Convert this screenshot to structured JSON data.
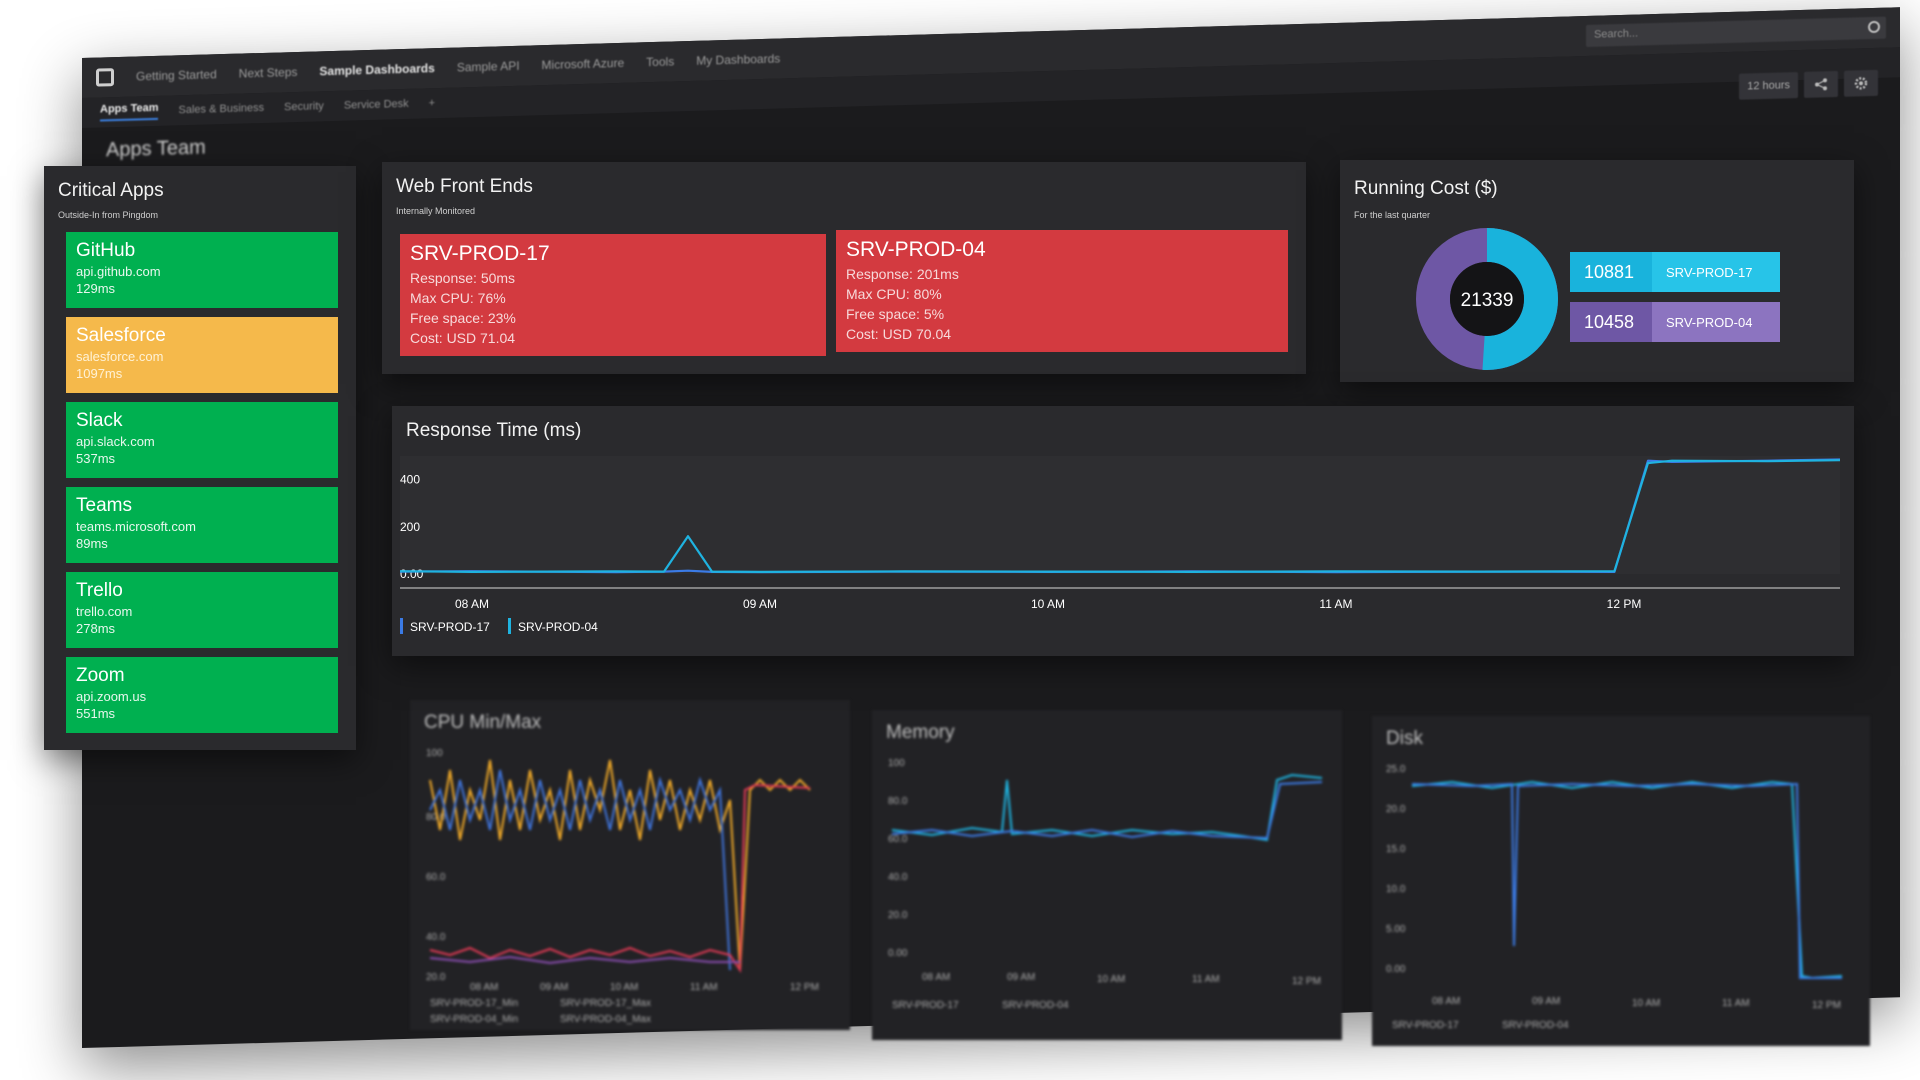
{
  "topnav": {
    "items": [
      "Getting Started",
      "Next Steps",
      "Sample Dashboards",
      "Sample API",
      "Microsoft Azure",
      "Tools",
      "My Dashboards"
    ],
    "active_index": 2,
    "search_placeholder": "Search..."
  },
  "subnav": {
    "items": [
      "Apps Team",
      "Sales & Business",
      "Security",
      "Service Desk",
      "+"
    ],
    "active_index": 0
  },
  "toolbar": {
    "timeframe": "12 hours"
  },
  "critical_apps": {
    "title": "Critical Apps",
    "subtitle": "Outside-In from Pingdom",
    "apps": [
      {
        "name": "GitHub",
        "url": "api.github.com",
        "ms": "129ms",
        "status": "ok"
      },
      {
        "name": "Salesforce",
        "url": "salesforce.com",
        "ms": "1097ms",
        "status": "warning"
      },
      {
        "name": "Slack",
        "url": "api.slack.com",
        "ms": "537ms",
        "status": "ok"
      },
      {
        "name": "Teams",
        "url": "teams.microsoft.com",
        "ms": "89ms",
        "status": "ok"
      },
      {
        "name": "Trello",
        "url": "trello.com",
        "ms": "278ms",
        "status": "ok"
      },
      {
        "name": "Zoom",
        "url": "api.zoom.us",
        "ms": "551ms",
        "status": "ok"
      }
    ],
    "colors": {
      "ok": "#00b050",
      "warning": "#f5b94b"
    }
  },
  "web_front_ends": {
    "title": "Web Front Ends",
    "subtitle": "Internally Monitored",
    "servers": [
      {
        "name": "SRV-PROD-17",
        "response": "Response: 50ms",
        "cpu": "Max CPU: 76%",
        "free": "Free space: 23%",
        "cost": "Cost: USD 71.04"
      },
      {
        "name": "SRV-PROD-04",
        "response": "Response: 201ms",
        "cpu": "Max CPU: 80%",
        "free": "Free space: 5%",
        "cost": "Cost: USD 70.04"
      }
    ],
    "alert_color": "#d33a40"
  },
  "running_cost": {
    "title": "Running Cost ($)",
    "subtitle": "For the last quarter",
    "total": "21339",
    "items": [
      {
        "value": "10881",
        "label": "SRV-PROD-17",
        "color": "#19b3dc",
        "label_color": "#27c4e8"
      },
      {
        "value": "10458",
        "label": "SRV-PROD-04",
        "color": "#6e57a5",
        "label_color": "#8c74c0"
      }
    ]
  },
  "response_time": {
    "title": "Response Time (ms)"
  },
  "chart_data": [
    {
      "type": "line",
      "title": "Response Time (ms)",
      "x": [
        "07:45",
        "08:00",
        "08:30",
        "08:40",
        "08:45",
        "08:50",
        "09:00",
        "09:30",
        "10:00",
        "10:30",
        "11:00",
        "11:30",
        "11:58",
        "12:05",
        "12:10",
        "12:30",
        "12:45"
      ],
      "xticks": [
        "08 AM",
        "09 AM",
        "10 AM",
        "11 AM",
        "12 PM"
      ],
      "yticks": [
        "0.00",
        "200",
        "400"
      ],
      "ylim": [
        0,
        500
      ],
      "series": [
        {
          "name": "SRV-PROD-17",
          "color": "#3b7be6",
          "values": [
            10,
            12,
            8,
            10,
            14,
            9,
            8,
            10,
            9,
            11,
            8,
            10,
            9,
            480,
            475,
            480,
            485
          ]
        },
        {
          "name": "SRV-PROD-04",
          "color": "#1fb3e0",
          "values": [
            12,
            9,
            11,
            10,
            160,
            10,
            9,
            11,
            10,
            9,
            11,
            10,
            12,
            470,
            480,
            478,
            482
          ]
        }
      ],
      "legend_position": "bottom-left"
    }
  ],
  "bottom_panels": {
    "cpu": {
      "title": "CPU Min/Max",
      "legend": [
        "SRV-PROD-17_Min",
        "SRV-PROD-17_Max",
        "SRV-PROD-04_Min",
        "SRV-PROD-04_Max"
      ],
      "yticks": [
        "100",
        "80.0",
        "60.0",
        "40.0",
        "20.0"
      ],
      "xticks": [
        "08 AM",
        "09 AM",
        "10 AM",
        "11 AM",
        "12 PM"
      ]
    },
    "memory": {
      "title": "Memory",
      "legend": [
        "SRV-PROD-17",
        "SRV-PROD-04"
      ],
      "yticks": [
        "100",
        "80.0",
        "60.0",
        "40.0",
        "20.0",
        "0.00"
      ],
      "xticks": [
        "08 AM",
        "09 AM",
        "10 AM",
        "11 AM",
        "12 PM"
      ]
    },
    "disk": {
      "title": "Disk",
      "legend": [
        "SRV-PROD-17",
        "SRV-PROD-04"
      ],
      "yticks": [
        "25.0",
        "20.0",
        "15.0",
        "10.0",
        "5.00",
        "0.00"
      ],
      "xticks": [
        "08 AM",
        "09 AM",
        "10 AM",
        "11 AM",
        "12 PM"
      ]
    }
  },
  "background_heading": "Apps Team"
}
